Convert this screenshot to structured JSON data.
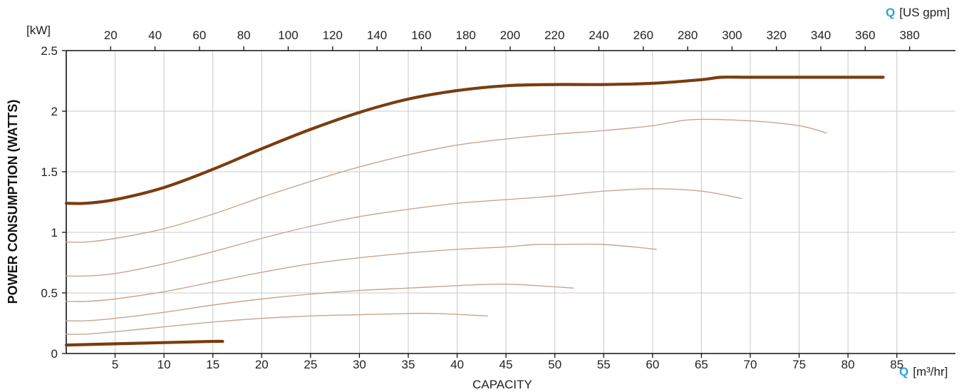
{
  "chart_data": {
    "type": "line",
    "ylabel": "POWER CONSUMPTION (WATTS)",
    "xlabel": "CAPACITY",
    "y_unit": "[kW]",
    "x_unit_bottom": "[m³/hr]",
    "x_unit_top": "[US gpm]",
    "q_symbol": "Q",
    "xlim": [
      0,
      91
    ],
    "ylim": [
      0,
      2.5
    ],
    "x_ticks": [
      "5",
      "10",
      "15",
      "20",
      "25",
      "30",
      "35",
      "40",
      "45",
      "50",
      "55",
      "60",
      "65",
      "70",
      "75",
      "80",
      "85"
    ],
    "y_ticks": [
      "0",
      "0.5",
      "1",
      "1.5",
      "2",
      "2.5"
    ],
    "top_ticks": [
      "20",
      "40",
      "60",
      "80",
      "100",
      "120",
      "140",
      "160",
      "180",
      "200",
      "220",
      "240",
      "260",
      "280",
      "300",
      "320",
      "340",
      "360",
      "380"
    ],
    "grid": true,
    "colors": {
      "thick_curve": "#7a3d0f",
      "thin_curve": "#c9a58c",
      "accent": "#2aa3d8",
      "grid": "#c8c8c8"
    },
    "series": [
      {
        "style": "thick",
        "x": [
          0,
          2,
          5,
          10,
          15,
          20,
          25,
          30,
          35,
          40,
          45,
          50,
          55,
          60,
          65,
          67,
          70,
          75,
          80,
          83.6
        ],
        "y": [
          1.24,
          1.24,
          1.27,
          1.37,
          1.52,
          1.69,
          1.85,
          1.99,
          2.1,
          2.17,
          2.21,
          2.22,
          2.22,
          2.23,
          2.26,
          2.28,
          2.28,
          2.28,
          2.28,
          2.28
        ]
      },
      {
        "style": "thin",
        "x": [
          0,
          2,
          5,
          10,
          15,
          20,
          25,
          30,
          35,
          40,
          45,
          50,
          55,
          60,
          64,
          70,
          75,
          77.8
        ],
        "y": [
          0.92,
          0.92,
          0.95,
          1.03,
          1.15,
          1.29,
          1.42,
          1.54,
          1.64,
          1.72,
          1.77,
          1.81,
          1.84,
          1.88,
          1.93,
          1.92,
          1.88,
          1.82
        ]
      },
      {
        "style": "thin",
        "x": [
          0,
          2,
          5,
          10,
          15,
          20,
          25,
          30,
          35,
          40,
          45,
          50,
          55,
          60,
          65,
          69.1
        ],
        "y": [
          0.64,
          0.64,
          0.66,
          0.74,
          0.84,
          0.95,
          1.05,
          1.13,
          1.19,
          1.24,
          1.27,
          1.3,
          1.34,
          1.36,
          1.34,
          1.28
        ]
      },
      {
        "style": "thin",
        "x": [
          0,
          2,
          5,
          10,
          15,
          20,
          25,
          30,
          35,
          40,
          45,
          48,
          50,
          55,
          60.4
        ],
        "y": [
          0.43,
          0.43,
          0.45,
          0.51,
          0.59,
          0.67,
          0.74,
          0.79,
          0.83,
          0.86,
          0.88,
          0.9,
          0.9,
          0.9,
          0.86
        ]
      },
      {
        "style": "thin",
        "x": [
          0,
          2,
          5,
          10,
          15,
          20,
          25,
          30,
          35,
          40,
          43,
          46,
          51.9
        ],
        "y": [
          0.27,
          0.27,
          0.29,
          0.34,
          0.4,
          0.45,
          0.49,
          0.52,
          0.54,
          0.56,
          0.57,
          0.57,
          0.54
        ]
      },
      {
        "style": "thin",
        "x": [
          0,
          2,
          5,
          10,
          15,
          20,
          25,
          30,
          35,
          38,
          43.1
        ],
        "y": [
          0.16,
          0.16,
          0.18,
          0.22,
          0.26,
          0.29,
          0.31,
          0.32,
          0.33,
          0.33,
          0.31
        ]
      },
      {
        "style": "thick",
        "x": [
          0,
          5,
          10,
          15,
          16
        ],
        "y": [
          0.07,
          0.08,
          0.09,
          0.1,
          0.1
        ]
      }
    ]
  }
}
